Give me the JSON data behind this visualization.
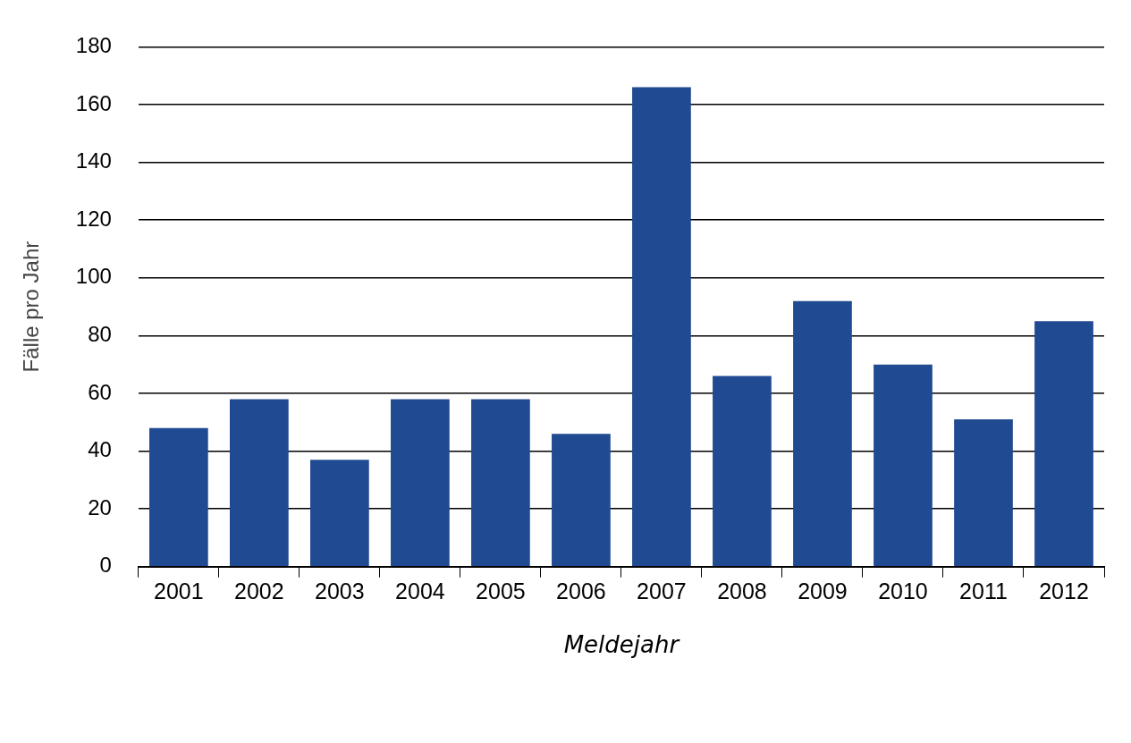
{
  "chart_data": {
    "type": "bar",
    "xlabel": "Meldejahr",
    "ylabel": "Fälle pro Jahr",
    "categories": [
      "2001",
      "2002",
      "2003",
      "2004",
      "2005",
      "2006",
      "2007",
      "2008",
      "2009",
      "2010",
      "2011",
      "2012"
    ],
    "values": [
      48,
      58,
      37,
      58,
      58,
      46,
      166,
      66,
      92,
      70,
      51,
      85
    ],
    "color": "#204a91",
    "ylim": [
      0,
      180
    ],
    "yticks": [
      0,
      20,
      40,
      60,
      80,
      100,
      120,
      140,
      160,
      180
    ],
    "grid": "y"
  }
}
